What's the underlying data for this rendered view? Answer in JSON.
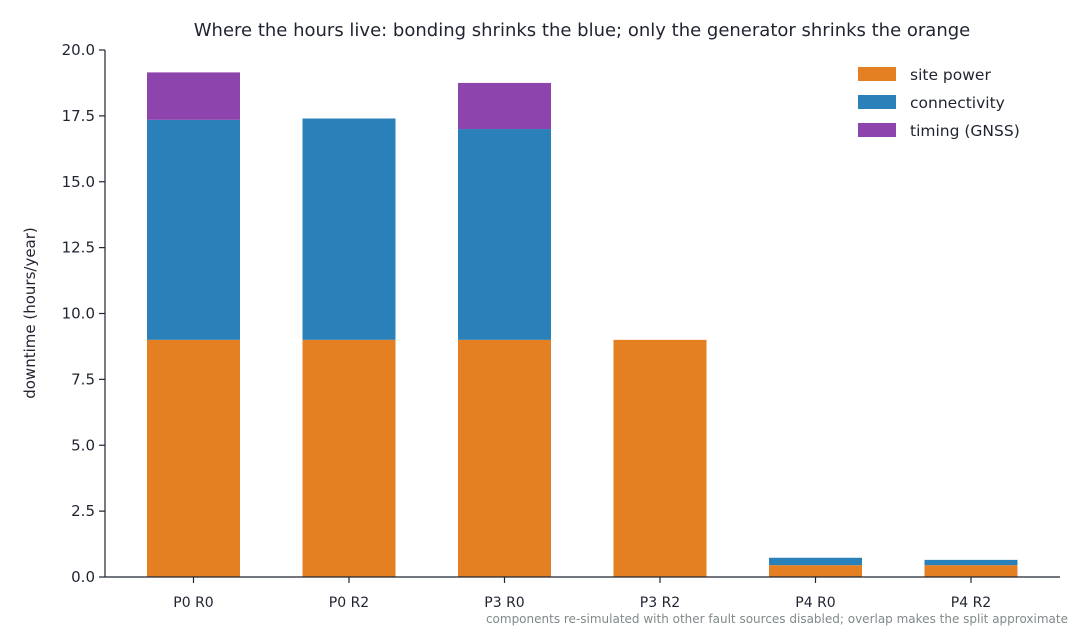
{
  "chart_data": {
    "type": "bar",
    "stacked": true,
    "title": "Where the hours live: bonding shrinks the blue; only the generator shrinks the orange",
    "xlabel": "",
    "ylabel": "downtime (hours/year)",
    "ylim": [
      0,
      20
    ],
    "yticks": [
      "0.0",
      "2.5",
      "5.0",
      "7.5",
      "10.0",
      "12.5",
      "15.0",
      "17.5",
      "20.0"
    ],
    "categories": [
      "P0 R0",
      "P0 R2",
      "P3 R0",
      "P3 R2",
      "P4 R0",
      "P4 R2"
    ],
    "series": [
      {
        "name": "site power",
        "color": "#e58022",
        "values": [
          9.0,
          9.0,
          9.0,
          9.0,
          0.45,
          0.45
        ]
      },
      {
        "name": "connectivity",
        "color": "#2a80b9",
        "values": [
          8.35,
          8.4,
          8.0,
          0.0,
          0.28,
          0.2
        ]
      },
      {
        "name": "timing (GNSS)",
        "color": "#8e44ad",
        "values": [
          1.8,
          0.0,
          1.75,
          0.0,
          0.0,
          0.0
        ]
      }
    ],
    "legend_position": "top-right",
    "grid": false,
    "footnote": "components re-simulated with other fault sources disabled; overlap makes the split approximate"
  }
}
